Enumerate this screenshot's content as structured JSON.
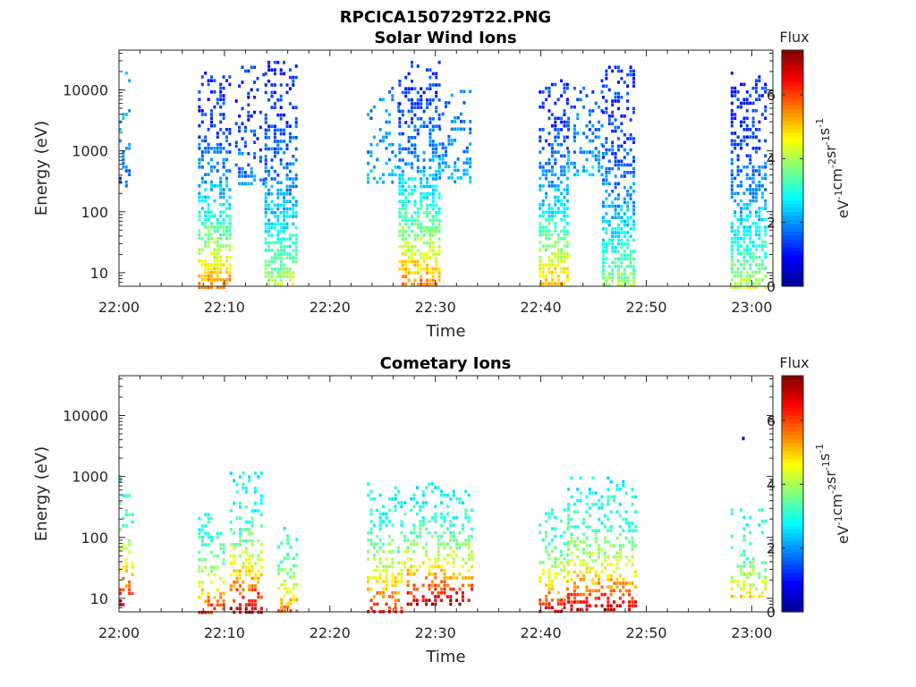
{
  "figure_title": "RPCICA150729T22.PNG",
  "colormap": [
    "#00008f",
    "#0000ff",
    "#0080ff",
    "#00ffff",
    "#80ff80",
    "#ffff00",
    "#ff8000",
    "#ff0000",
    "#800000"
  ],
  "chart_data": [
    {
      "type": "heatmap",
      "title": "Solar Wind Ions",
      "xlabel": "Time",
      "ylabel": "Energy (eV)",
      "x_ticks": [
        "22:00",
        "22:10",
        "22:20",
        "22:30",
        "22:40",
        "22:50",
        "23:00"
      ],
      "x_range_minutes": [
        0,
        62
      ],
      "y_scale": "log",
      "y_ticks": [
        "10",
        "100",
        "1000",
        "10000"
      ],
      "y_range": [
        6,
        45000
      ],
      "colorbar": {
        "label_top": "Flux",
        "unit_base": "eV",
        "unit_exps": [
          "-1",
          "-2",
          "-1",
          "-1"
        ],
        "unit_parts": [
          "cm",
          "sr",
          "s"
        ],
        "range": [
          0,
          7.4
        ],
        "ticks": [
          "0",
          "2",
          "4",
          "6"
        ]
      },
      "bursts": [
        {
          "start_min": 0.0,
          "end_min": 1.0,
          "e_low": 250,
          "e_high": 20000,
          "density": 0.35,
          "flux_high": 2.3,
          "flux_low": 1.4
        },
        {
          "start_min": 7.5,
          "end_min": 10.7,
          "e_low": 6,
          "e_high": 20000,
          "density": 0.7,
          "flux_high": 1.2,
          "flux_low": 5.6
        },
        {
          "start_min": 11.0,
          "end_min": 13.8,
          "e_low": 300,
          "e_high": 25000,
          "density": 0.35,
          "flux_high": 1.2,
          "flux_low": 2.0
        },
        {
          "start_min": 13.8,
          "end_min": 17.0,
          "e_low": 6,
          "e_high": 30000,
          "density": 0.7,
          "flux_high": 1.2,
          "flux_low": 4.2
        },
        {
          "start_min": 23.5,
          "end_min": 26.5,
          "e_low": 300,
          "e_high": 15000,
          "density": 0.3,
          "flux_high": 1.8,
          "flux_low": 2.2
        },
        {
          "start_min": 26.5,
          "end_min": 30.3,
          "e_low": 6,
          "e_high": 30000,
          "density": 0.7,
          "flux_high": 1.3,
          "flux_low": 5.8
        },
        {
          "start_min": 30.3,
          "end_min": 33.5,
          "e_low": 300,
          "e_high": 10000,
          "density": 0.35,
          "flux_high": 1.8,
          "flux_low": 2.2
        },
        {
          "start_min": 39.8,
          "end_min": 42.5,
          "e_low": 6,
          "e_high": 15000,
          "density": 0.7,
          "flux_high": 1.2,
          "flux_low": 5.4
        },
        {
          "start_min": 42.5,
          "end_min": 45.8,
          "e_low": 400,
          "e_high": 15000,
          "density": 0.35,
          "flux_high": 1.5,
          "flux_low": 2.5
        },
        {
          "start_min": 45.8,
          "end_min": 49.0,
          "e_low": 6,
          "e_high": 25000,
          "density": 0.7,
          "flux_high": 1.2,
          "flux_low": 4.0
        },
        {
          "start_min": 58.0,
          "end_min": 61.3,
          "e_low": 6,
          "e_high": 20000,
          "density": 0.7,
          "flux_high": 1.2,
          "flux_low": 4.2
        }
      ]
    },
    {
      "type": "heatmap",
      "title": "Cometary Ions",
      "xlabel": "Time",
      "ylabel": "Energy (eV)",
      "x_ticks": [
        "22:00",
        "22:10",
        "22:20",
        "22:30",
        "22:40",
        "22:50",
        "23:00"
      ],
      "x_range_minutes": [
        0,
        62
      ],
      "y_scale": "log",
      "y_ticks": [
        "10",
        "100",
        "1000",
        "10000"
      ],
      "y_range": [
        6,
        45000
      ],
      "colorbar": {
        "label_top": "Flux",
        "unit_base": "eV",
        "unit_exps": [
          "-1",
          "-2",
          "-1",
          "-1"
        ],
        "unit_parts": [
          "cm",
          "sr",
          "s"
        ],
        "range": [
          0,
          7.4
        ],
        "ticks": [
          "0",
          "2",
          "4",
          "6"
        ]
      },
      "bursts": [
        {
          "start_min": 0.0,
          "end_min": 1.2,
          "e_low": 8,
          "e_high": 1200,
          "density": 0.4,
          "flux_high": 3.0,
          "flux_low": 6.8
        },
        {
          "start_min": 7.5,
          "end_min": 10.0,
          "e_low": 6,
          "e_high": 250,
          "density": 0.5,
          "flux_high": 3.0,
          "flux_low": 6.5
        },
        {
          "start_min": 10.5,
          "end_min": 13.5,
          "e_low": 6,
          "e_high": 1200,
          "density": 0.5,
          "flux_high": 2.8,
          "flux_low": 7.2
        },
        {
          "start_min": 15.0,
          "end_min": 17.0,
          "e_low": 6,
          "e_high": 150,
          "density": 0.5,
          "flux_high": 3.0,
          "flux_low": 6.0
        },
        {
          "start_min": 23.5,
          "end_min": 27.0,
          "e_low": 6,
          "e_high": 800,
          "density": 0.5,
          "flux_high": 2.8,
          "flux_low": 6.5
        },
        {
          "start_min": 27.0,
          "end_min": 33.5,
          "e_low": 8,
          "e_high": 800,
          "density": 0.5,
          "flux_high": 2.8,
          "flux_low": 7.2
        },
        {
          "start_min": 39.8,
          "end_min": 42.5,
          "e_low": 6,
          "e_high": 300,
          "density": 0.5,
          "flux_high": 3.0,
          "flux_low": 7.0
        },
        {
          "start_min": 42.5,
          "end_min": 49.0,
          "e_low": 6,
          "e_high": 1000,
          "density": 0.5,
          "flux_high": 2.8,
          "flux_low": 7.2
        },
        {
          "start_min": 58.0,
          "end_min": 61.5,
          "e_low": 10,
          "e_high": 300,
          "density": 0.35,
          "flux_high": 3.0,
          "flux_low": 5.0
        }
      ],
      "points": [
        {
          "minute": 59.2,
          "energy": 4200,
          "flux": 1.0
        }
      ]
    }
  ]
}
